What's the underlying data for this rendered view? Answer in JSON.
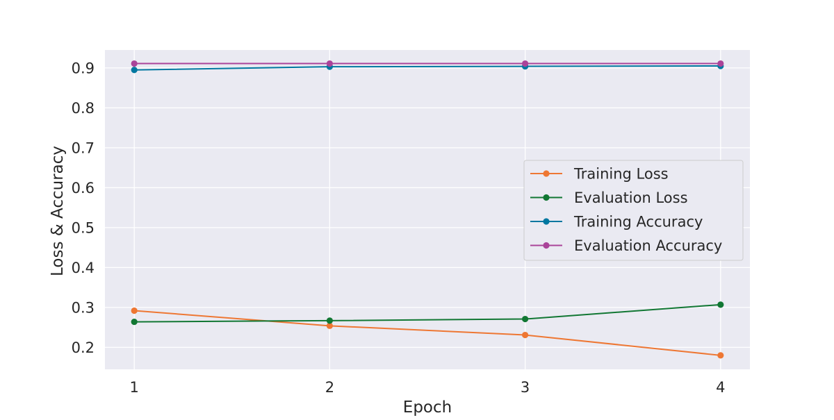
{
  "chart_data": {
    "type": "line",
    "title": "",
    "xlabel": "Epoch",
    "ylabel": "Loss & Accuracy",
    "x": [
      1,
      2,
      3,
      4
    ],
    "xticks": [
      "1",
      "2",
      "3",
      "4"
    ],
    "yticks": [
      "0.2",
      "0.3",
      "0.4",
      "0.5",
      "0.6",
      "0.7",
      "0.8",
      "0.9"
    ],
    "xlim": [
      0.85,
      4.15
    ],
    "ylim": [
      0.145,
      0.945
    ],
    "grid": true,
    "legend_position": "center-right",
    "plot_background": "#eaeaf2",
    "series": [
      {
        "name": "Training Loss",
        "color": "#ee7733",
        "values": [
          0.292,
          0.254,
          0.231,
          0.18
        ]
      },
      {
        "name": "Evaluation Loss",
        "color": "#117733",
        "values": [
          0.264,
          0.267,
          0.271,
          0.307
        ]
      },
      {
        "name": "Training Accuracy",
        "color": "#0077a0",
        "values": [
          0.895,
          0.903,
          0.904,
          0.905
        ]
      },
      {
        "name": "Evaluation Accuracy",
        "color": "#aa4499",
        "values": [
          0.911,
          0.911,
          0.911,
          0.911
        ]
      }
    ]
  }
}
